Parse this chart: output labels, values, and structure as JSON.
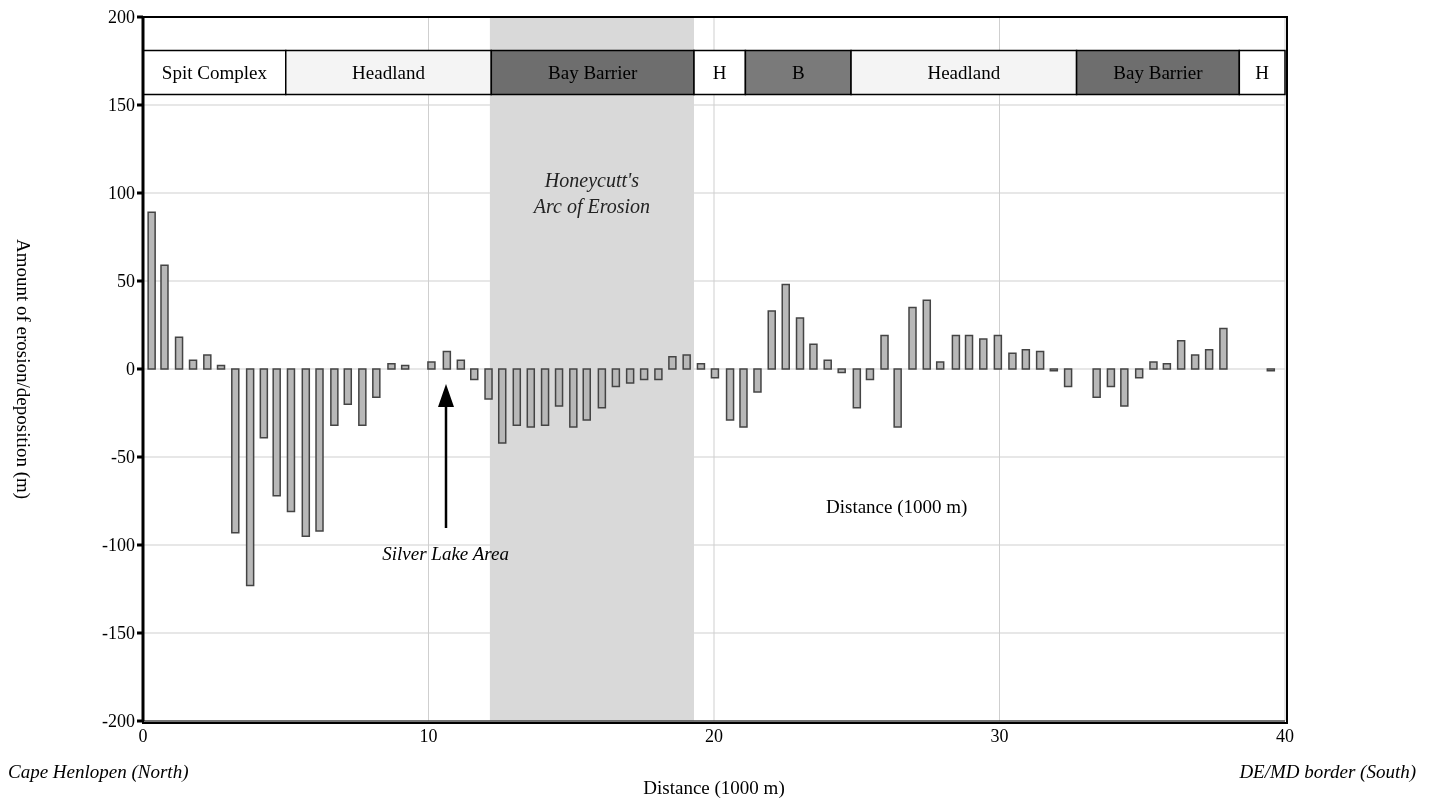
{
  "chart_data": {
    "type": "bar",
    "xlabel": "Distance (1000 m)",
    "ylabel": "Amount of erosion/deposition (m)",
    "x": [
      0.3,
      0.75,
      1.26,
      1.75,
      2.25,
      2.73,
      3.23,
      3.75,
      4.23,
      4.68,
      5.18,
      5.7,
      6.18,
      6.7,
      7.17,
      7.68,
      8.17,
      8.7,
      9.18,
      10.1,
      10.64,
      11.13,
      11.6,
      12.1,
      12.58,
      13.09,
      13.58,
      14.08,
      14.57,
      15.07,
      15.54,
      16.07,
      16.56,
      17.06,
      17.55,
      18.05,
      18.54,
      19.04,
      19.54,
      20.03,
      20.56,
      21.03,
      21.52,
      22.02,
      22.51,
      23.01,
      23.48,
      23.98,
      24.47,
      25.0,
      25.46,
      25.97,
      26.43,
      26.95,
      27.45,
      27.92,
      28.47,
      28.93,
      29.43,
      29.94,
      30.45,
      30.92,
      31.42,
      31.9,
      32.4,
      33.4,
      33.9,
      34.37,
      34.89,
      35.39,
      35.86,
      36.36,
      36.85,
      37.34,
      37.84,
      39.5
    ],
    "series": [
      {
        "color": "#b8b8b8",
        "values": [
          89,
          59,
          18,
          5,
          8,
          2,
          -93,
          -123,
          -39,
          -72,
          -81,
          -95,
          -92,
          -32,
          -20,
          -32,
          -16,
          3,
          2,
          4,
          10,
          5,
          -6,
          -17,
          -42,
          -32,
          -33,
          -32,
          -21,
          -33,
          -29,
          -22,
          -10,
          -8,
          -6,
          -6,
          7,
          8,
          3,
          -5,
          -29,
          -33,
          -13,
          33,
          48,
          29,
          14,
          5,
          -2,
          -22,
          -6,
          19,
          -33,
          35,
          39,
          4,
          19,
          19,
          17,
          19,
          9,
          11,
          10,
          -1,
          -10,
          -16,
          -10,
          -21,
          -5,
          4,
          3,
          16,
          8,
          11,
          23,
          -1
        ]
      }
    ],
    "xlim": [
      0,
      40
    ],
    "xticks": [
      0,
      10,
      20,
      30,
      40
    ],
    "ylim": [
      -200,
      200
    ],
    "yticks": [
      -200,
      -150,
      -100,
      -50,
      0,
      50,
      100,
      150,
      200
    ],
    "grid": true,
    "bands": [
      {
        "axis": "x",
        "from": 12.15,
        "to": 19.3,
        "label": "Honeycutt's Arc of Erosion",
        "color": "#d9d9d9"
      },
      {
        "axis": "x",
        "from": 0,
        "to": 5,
        "label": "Spit Complex",
        "color": "#ffffff"
      },
      {
        "axis": "x",
        "from": 5,
        "to": 12.2,
        "label": "Headland",
        "color": "#f4f4f4"
      },
      {
        "axis": "x",
        "from": 12.2,
        "to": 19.3,
        "label": "Bay Barrier",
        "color": "#6e6e6e"
      },
      {
        "axis": "x",
        "from": 19.3,
        "to": 21.1,
        "label": "H",
        "color": "#ffffff"
      },
      {
        "axis": "x",
        "from": 21.1,
        "to": 24.8,
        "label": "B",
        "color": "#7a7a7a"
      },
      {
        "axis": "x",
        "from": 24.8,
        "to": 32.7,
        "label": "Headland",
        "color": "#f4f4f4"
      },
      {
        "axis": "x",
        "from": 32.7,
        "to": 38.4,
        "label": "Bay Barrier",
        "color": "#6e6e6e"
      },
      {
        "axis": "x",
        "from": 38.4,
        "to": 40,
        "label": "H",
        "color": "#ffffff"
      }
    ],
    "annotations": [
      "Silver Lake Area",
      "Distance (1000 m)",
      "Cape Henlopen (North)",
      "DE/MD border (South)"
    ]
  }
}
